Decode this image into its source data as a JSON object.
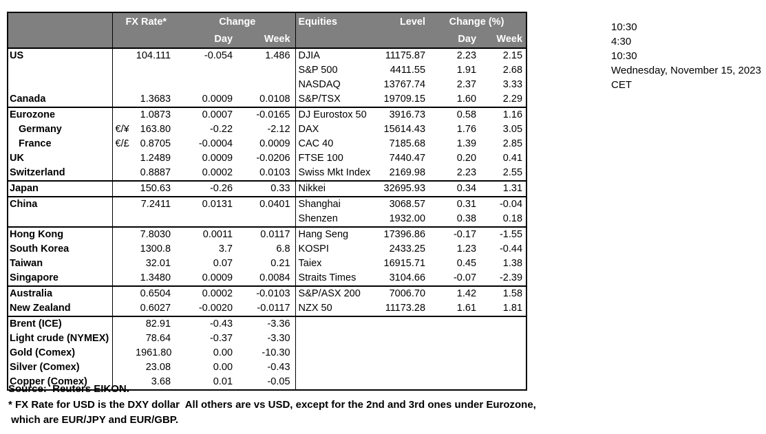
{
  "colors": {
    "header_bg": "#808080",
    "header_text": "#ffffff",
    "border": "#000000"
  },
  "header": {
    "fx_rate": "FX Rate*",
    "change": "Change",
    "day": "Day",
    "week": "Week",
    "equities": "Equities",
    "level": "Level",
    "change_pct": "Change (%)",
    "eq_day": "Day",
    "eq_week": "Week"
  },
  "sections": [
    {
      "rows": [
        {
          "label": "US",
          "indent": false,
          "pair": "",
          "fx_rate": "104.111",
          "fx_day": "-0.054",
          "fx_week": "1.486",
          "equity": "DJIA",
          "level": "11175.87",
          "eq_day": "2.23",
          "eq_week": "2.15"
        },
        {
          "label": "",
          "indent": false,
          "pair": "",
          "fx_rate": "",
          "fx_day": "",
          "fx_week": "",
          "equity": "S&P 500",
          "level": "4411.55",
          "eq_day": "1.91",
          "eq_week": "2.68"
        },
        {
          "label": "",
          "indent": false,
          "pair": "",
          "fx_rate": "",
          "fx_day": "",
          "fx_week": "",
          "equity": "NASDAQ",
          "level": "13767.74",
          "eq_day": "2.37",
          "eq_week": "3.33"
        },
        {
          "label": "Canada",
          "indent": false,
          "pair": "",
          "fx_rate": "1.3683",
          "fx_day": "0.0009",
          "fx_week": "0.0108",
          "equity": "S&P/TSX",
          "level": "19709.15",
          "eq_day": "1.60",
          "eq_week": "2.29"
        }
      ]
    },
    {
      "rows": [
        {
          "label": "Eurozone",
          "indent": false,
          "pair": "",
          "fx_rate": "1.0873",
          "fx_day": "0.0007",
          "fx_week": "-0.0165",
          "equity": "DJ Eurostox 50",
          "level": "3916.73",
          "eq_day": "0.58",
          "eq_week": "1.16"
        },
        {
          "label": "Germany",
          "indent": true,
          "pair": "€/¥",
          "fx_rate": "163.80",
          "fx_day": "-0.22",
          "fx_week": "-2.12",
          "equity": "DAX",
          "level": "15614.43",
          "eq_day": "1.76",
          "eq_week": "3.05"
        },
        {
          "label": "France",
          "indent": true,
          "pair": "€/£",
          "fx_rate": "0.8705",
          "fx_day": "-0.0004",
          "fx_week": "0.0009",
          "equity": "CAC 40",
          "level": "7185.68",
          "eq_day": "1.39",
          "eq_week": "2.85"
        },
        {
          "label": "UK",
          "indent": false,
          "pair": "",
          "fx_rate": "1.2489",
          "fx_day": "0.0009",
          "fx_week": "-0.0206",
          "equity": "FTSE 100",
          "level": "7440.47",
          "eq_day": "0.20",
          "eq_week": "0.41"
        },
        {
          "label": "Switzerland",
          "indent": false,
          "pair": "",
          "fx_rate": "0.8887",
          "fx_day": "0.0002",
          "fx_week": "0.0103",
          "equity": "Swiss Mkt Index",
          "level": "2169.98",
          "eq_day": "2.23",
          "eq_week": "2.55"
        }
      ]
    },
    {
      "rows": [
        {
          "label": "Japan",
          "indent": false,
          "pair": "",
          "fx_rate": "150.63",
          "fx_day": "-0.26",
          "fx_week": "0.33",
          "equity": "Nikkei",
          "level": "32695.93",
          "eq_day": "0.34",
          "eq_week": "1.31"
        }
      ]
    },
    {
      "rows": [
        {
          "label": "China",
          "indent": false,
          "pair": "",
          "fx_rate": "7.2411",
          "fx_day": "0.0131",
          "fx_week": "0.0401",
          "equity": "Shanghai",
          "level": "3068.57",
          "eq_day": "0.31",
          "eq_week": "-0.04"
        },
        {
          "label": "",
          "indent": false,
          "pair": "",
          "fx_rate": "",
          "fx_day": "",
          "fx_week": "",
          "equity": "Shenzen",
          "level": "1932.00",
          "eq_day": "0.38",
          "eq_week": "0.18"
        }
      ]
    },
    {
      "rows": [
        {
          "label": "Hong Kong",
          "indent": false,
          "pair": "",
          "fx_rate": "7.8030",
          "fx_day": "0.0011",
          "fx_week": "0.0117",
          "equity": "Hang Seng",
          "level": "17396.86",
          "eq_day": "-0.17",
          "eq_week": "-1.55"
        },
        {
          "label": "South Korea",
          "indent": false,
          "pair": "",
          "fx_rate": "1300.8",
          "fx_day": "3.7",
          "fx_week": "6.8",
          "equity": "KOSPI",
          "level": "2433.25",
          "eq_day": "1.23",
          "eq_week": "-0.44"
        },
        {
          "label": "Taiwan",
          "indent": false,
          "pair": "",
          "fx_rate": "32.01",
          "fx_day": "0.07",
          "fx_week": "0.21",
          "equity": "Taiex",
          "level": "16915.71",
          "eq_day": "0.45",
          "eq_week": "1.38"
        },
        {
          "label": "Singapore",
          "indent": false,
          "pair": "",
          "fx_rate": "1.3480",
          "fx_day": "0.0009",
          "fx_week": "0.0084",
          "equity": "Straits Times",
          "level": "3104.66",
          "eq_day": "-0.07",
          "eq_week": "-2.39"
        }
      ]
    },
    {
      "rows": [
        {
          "label": "Australia",
          "indent": false,
          "pair": "",
          "fx_rate": "0.6504",
          "fx_day": "0.0002",
          "fx_week": "-0.0103",
          "equity": "S&P/ASX  200",
          "level": "7006.70",
          "eq_day": "1.42",
          "eq_week": "1.58"
        },
        {
          "label": "New Zealand",
          "indent": false,
          "pair": "",
          "fx_rate": "0.6027",
          "fx_day": "-0.0020",
          "fx_week": "-0.0117",
          "equity": "NZX 50",
          "level": "11173.28",
          "eq_day": "1.61",
          "eq_week": "1.81"
        }
      ]
    },
    {
      "rows": [
        {
          "label": "Brent (ICE)",
          "indent": false,
          "pair": "",
          "fx_rate": "82.91",
          "fx_day": "-0.43",
          "fx_week": "-3.36",
          "equity": "",
          "level": "",
          "eq_day": "",
          "eq_week": ""
        },
        {
          "label": "Light crude (NYMEX)",
          "indent": false,
          "pair": "",
          "fx_rate": "78.64",
          "fx_day": "-0.37",
          "fx_week": "-3.30",
          "equity": "",
          "level": "",
          "eq_day": "",
          "eq_week": ""
        },
        {
          "label": "Gold (Comex)",
          "indent": false,
          "pair": "",
          "fx_rate": "1961.80",
          "fx_day": "0.00",
          "fx_week": "-10.30",
          "equity": "",
          "level": "",
          "eq_day": "",
          "eq_week": ""
        },
        {
          "label": "Silver (Comex)",
          "indent": false,
          "pair": "",
          "fx_rate": "23.08",
          "fx_day": "0.00",
          "fx_week": "-0.43",
          "equity": "",
          "level": "",
          "eq_day": "",
          "eq_week": ""
        },
        {
          "label": "Copper (Comex)",
          "indent": false,
          "pair": "",
          "fx_rate": "3.68",
          "fx_day": "0.01",
          "fx_week": "-0.05",
          "equity": "",
          "level": "",
          "eq_day": "",
          "eq_week": ""
        }
      ]
    }
  ],
  "timestamps": {
    "line1": "10:30",
    "line2": "4:30",
    "line3": "10:30",
    "line4": "Wednesday, November 15, 2023",
    "line5": "CET"
  },
  "footer": {
    "source": "Source:  Reuters EIKON.",
    "footnote_line1": "* FX Rate for USD is the DXY dollar  All others are vs USD, except for the 2nd and 3rd ones under Eurozone,",
    "footnote_line2": " which are EUR/JPY and EUR/GBP."
  }
}
